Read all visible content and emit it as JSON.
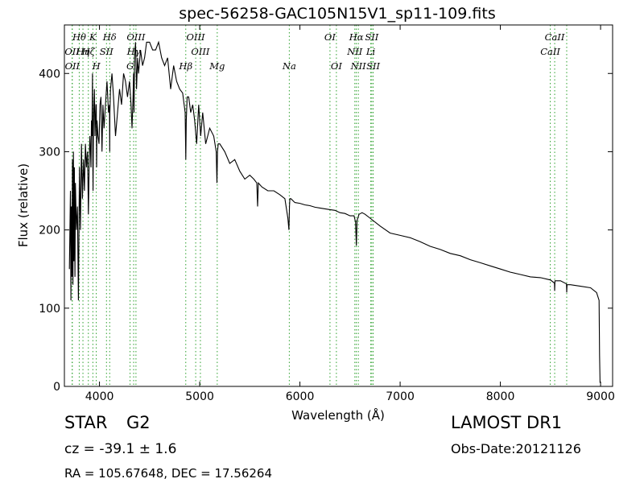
{
  "chart_data": {
    "type": "line",
    "title": "spec-56258-GAC105N15V1_sp11-109.fits",
    "xlabel": "Wavelength (Å)",
    "ylabel": "Flux (relative)",
    "xlim": [
      3650,
      9120
    ],
    "ylim": [
      0,
      462
    ],
    "xticks": [
      4000,
      5000,
      6000,
      7000,
      8000,
      9000
    ],
    "yticks": [
      0,
      100,
      200,
      300,
      400
    ],
    "grid": false,
    "line_color": "#000000",
    "marker_color": "#2ca02c",
    "spectrum": {
      "x": [
        3700,
        3710,
        3715,
        3720,
        3725,
        3730,
        3735,
        3740,
        3745,
        3750,
        3755,
        3760,
        3770,
        3780,
        3790,
        3800,
        3810,
        3820,
        3830,
        3840,
        3850,
        3860,
        3870,
        3880,
        3885,
        3889,
        3893,
        3897,
        3905,
        3910,
        3915,
        3920,
        3925,
        3930,
        3933,
        3936,
        3940,
        3945,
        3950,
        3955,
        3960,
        3965,
        3968,
        3971,
        3975,
        3985,
        3995,
        4005,
        4015,
        4025,
        4035,
        4045,
        4060,
        4075,
        4090,
        4100,
        4102,
        4104,
        4110,
        4125,
        4140,
        4160,
        4180,
        4200,
        4220,
        4240,
        4260,
        4280,
        4300,
        4315,
        4325,
        4335,
        4340,
        4345,
        4350,
        4360,
        4370,
        4380,
        4390,
        4410,
        4430,
        4450,
        4470,
        4500,
        4530,
        4560,
        4590,
        4620,
        4650,
        4680,
        4710,
        4740,
        4770,
        4800,
        4830,
        4855,
        4861,
        4866,
        4875,
        4890,
        4910,
        4930,
        4950,
        4970,
        4990,
        5010,
        5030,
        5060,
        5100,
        5140,
        5165,
        5172,
        5178,
        5185,
        5200,
        5250,
        5300,
        5350,
        5400,
        5450,
        5500,
        5540,
        5570,
        5578,
        5585,
        5620,
        5680,
        5740,
        5800,
        5850,
        5880,
        5890,
        5896,
        5900,
        5910,
        5950,
        6000,
        6050,
        6100,
        6150,
        6200,
        6250,
        6300,
        6350,
        6400,
        6450,
        6500,
        6540,
        6555,
        6563,
        6570,
        6590,
        6620,
        6650,
        6700,
        6800,
        6900,
        7000,
        7100,
        7200,
        7300,
        7400,
        7500,
        7600,
        7700,
        7800,
        7900,
        8000,
        8100,
        8200,
        8300,
        8400,
        8500,
        8540,
        8542,
        8545,
        8600,
        8660,
        8662,
        8665,
        8700,
        8800,
        8900,
        8960,
        8985,
        8990,
        8995,
        9000
      ],
      "y": [
        150,
        250,
        110,
        230,
        140,
        290,
        130,
        300,
        160,
        280,
        140,
        260,
        200,
        230,
        110,
        280,
        200,
        310,
        240,
        290,
        250,
        310,
        280,
        300,
        260,
        220,
        250,
        290,
        320,
        300,
        280,
        340,
        320,
        400,
        300,
        250,
        330,
        360,
        380,
        320,
        340,
        360,
        360,
        280,
        340,
        320,
        310,
        360,
        370,
        300,
        360,
        330,
        360,
        390,
        350,
        360,
        300,
        350,
        380,
        400,
        370,
        320,
        350,
        380,
        360,
        400,
        390,
        370,
        390,
        360,
        330,
        370,
        400,
        350,
        420,
        440,
        380,
        420,
        400,
        430,
        410,
        420,
        440,
        440,
        430,
        430,
        440,
        420,
        410,
        420,
        380,
        410,
        390,
        380,
        375,
        350,
        290,
        340,
        370,
        370,
        350,
        360,
        340,
        310,
        360,
        320,
        350,
        310,
        330,
        320,
        300,
        260,
        300,
        310,
        310,
        300,
        285,
        290,
        275,
        265,
        270,
        265,
        260,
        230,
        260,
        255,
        250,
        250,
        245,
        240,
        215,
        200,
        230,
        240,
        240,
        235,
        234,
        232,
        231,
        229,
        228,
        227,
        226,
        225,
        222,
        221,
        218,
        218,
        210,
        180,
        212,
        220,
        222,
        220,
        215,
        205,
        196,
        193,
        190,
        185,
        179,
        175,
        170,
        167,
        162,
        158,
        154,
        150,
        146,
        143,
        140,
        139,
        136,
        132,
        122,
        135,
        135,
        131,
        120,
        130,
        130,
        128,
        126,
        120,
        110,
        40,
        5,
        5
      ]
    },
    "absorption_lines": [
      {
        "label": "Hθ",
        "wavelength": 3798
      },
      {
        "label": "K",
        "wavelength": 3934
      },
      {
        "label": "Hδ",
        "wavelength": 4102
      },
      {
        "label": "OIII",
        "wavelength": 4364
      },
      {
        "label": "OIII",
        "wavelength": 4960
      },
      {
        "label": "OI",
        "wavelength": 6300
      },
      {
        "label": "Hα",
        "wavelength": 6563
      },
      {
        "label": "SII",
        "wavelength": 6717
      },
      {
        "label": "CaII",
        "wavelength": 8542
      },
      {
        "label": "OII",
        "wavelength": 3727
      },
      {
        "label": "Hη",
        "wavelength": 3835
      },
      {
        "label": "Hζ",
        "wavelength": 3889
      },
      {
        "label": "SII",
        "wavelength": 4070
      },
      {
        "label": "Hγ",
        "wavelength": 4341
      },
      {
        "label": "OIII",
        "wavelength": 5007
      },
      {
        "label": "NII",
        "wavelength": 6548
      },
      {
        "label": "Li",
        "wavelength": 6707
      },
      {
        "label": "CaII",
        "wavelength": 8498
      },
      {
        "label": "OII",
        "wavelength": 3729
      },
      {
        "label": "H",
        "wavelength": 3968
      },
      {
        "label": "G",
        "wavelength": 4305
      },
      {
        "label": "Hβ",
        "wavelength": 4861
      },
      {
        "label": "Mg",
        "wavelength": 5175
      },
      {
        "label": "Na",
        "wavelength": 5894
      },
      {
        "label": "OI",
        "wavelength": 6364
      },
      {
        "label": "NII",
        "wavelength": 6583
      },
      {
        "label": "SII",
        "wavelength": 6731
      },
      {
        "label": "CaII",
        "wavelength": 8662
      }
    ]
  },
  "info": {
    "class": "STAR",
    "subclass": "G2",
    "redshift": "cz = -39.1 ± 1.6",
    "coords": "RA = 105.67648, DEC = 17.56264",
    "survey": "LAMOST DR1",
    "obs_date": "Obs-Date:20121126"
  }
}
